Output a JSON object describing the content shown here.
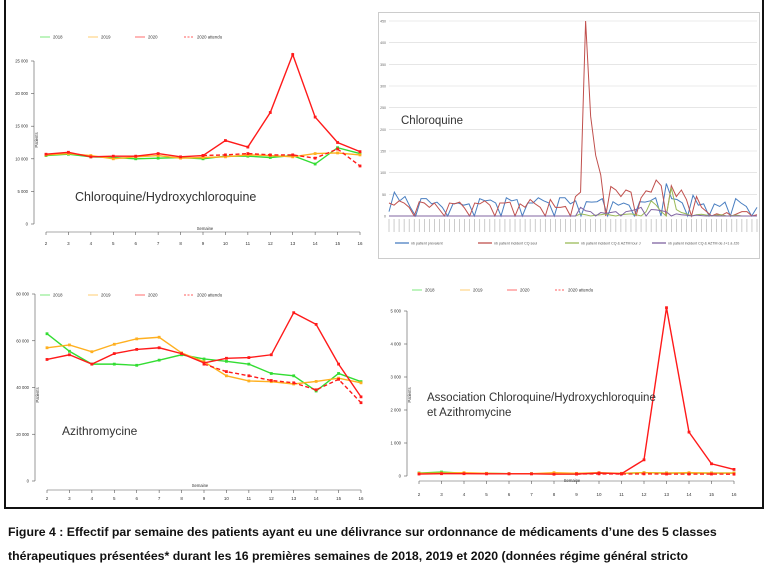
{
  "chart_data": [
    {
      "type": "line",
      "title": "Chloroquine/Hydroxychloroquine",
      "xlabel": "Semaine",
      "ylabel": "Patients",
      "ylim": [
        0,
        25000
      ],
      "yticks": [
        0,
        5000,
        10000,
        15000,
        20000,
        25000
      ],
      "ytick_labels": [
        "0",
        "5 000",
        "10 000",
        "15 000",
        "20 000",
        "25 000"
      ],
      "x": [
        2,
        3,
        4,
        5,
        6,
        7,
        8,
        9,
        10,
        11,
        12,
        13,
        14,
        15,
        16
      ],
      "legend_position": "top",
      "series": [
        {
          "name": "2018",
          "color": "#33dd33",
          "dashed": false,
          "values": [
            10500,
            10700,
            10300,
            10200,
            10000,
            10100,
            10200,
            10000,
            10400,
            10400,
            10200,
            10500,
            9200,
            11700,
            10800
          ]
        },
        {
          "name": "2019",
          "color": "#ffb020",
          "dashed": false,
          "values": [
            10600,
            10800,
            10500,
            10000,
            10300,
            10500,
            10100,
            10200,
            10300,
            10600,
            10500,
            10300,
            10800,
            10900,
            10600
          ]
        },
        {
          "name": "2020",
          "color": "#ff1a1a",
          "dashed": false,
          "values": [
            10700,
            11000,
            10300,
            10400,
            10400,
            10800,
            10300,
            10500,
            12800,
            11800,
            17100,
            26000,
            16400,
            12500,
            11100
          ]
        },
        {
          "name": "2020 attendu",
          "color": "#ff1a1a",
          "dashed": true,
          "values": [
            null,
            null,
            null,
            null,
            null,
            null,
            null,
            10500,
            10600,
            10800,
            10600,
            10600,
            10100,
            11500,
            8900
          ]
        }
      ]
    },
    {
      "type": "line",
      "title": "Chloroquine",
      "ylim": [
        0,
        450
      ],
      "yticks": [
        0,
        50,
        100,
        150,
        200,
        250,
        300,
        350,
        400,
        450
      ],
      "ytick_labels": [
        "0",
        "50",
        "100",
        "150",
        "200",
        "250",
        "300",
        "350",
        "400",
        "450"
      ],
      "grid": true,
      "legend_position": "bottom",
      "series": [
        {
          "name": "nb patient prévalent",
          "color": "#4a7fc1",
          "values": [
            10,
            55,
            35,
            45,
            20,
            0,
            40,
            40,
            28,
            32,
            20,
            0,
            28,
            30,
            25,
            28,
            0,
            40,
            35,
            37,
            30,
            0,
            42,
            35,
            38,
            0,
            30,
            30,
            42,
            35,
            30,
            0,
            42,
            42,
            28,
            35,
            0,
            33,
            32,
            33,
            40,
            0,
            33,
            25,
            30,
            25,
            0,
            33,
            32,
            35,
            42,
            0,
            75,
            40,
            38,
            30,
            0,
            48,
            25,
            28,
            0,
            28,
            22,
            32,
            0,
            40,
            30,
            22,
            0,
            20
          ]
        },
        {
          "name": "nb patient incident CQ seul",
          "color": "#c0504d",
          "values": [
            30,
            25,
            35,
            30,
            20,
            0,
            33,
            30,
            20,
            30,
            15,
            0,
            30,
            28,
            32,
            18,
            0,
            30,
            28,
            35,
            25,
            0,
            30,
            30,
            32,
            0,
            28,
            20,
            38,
            28,
            20,
            0,
            38,
            20,
            20,
            22,
            0,
            45,
            55,
            450,
            230,
            140,
            95,
            0,
            68,
            60,
            45,
            60,
            55,
            0,
            42,
            58,
            55,
            83,
            70,
            0,
            70,
            45,
            60,
            38,
            0,
            45,
            20,
            10,
            0,
            5,
            2,
            8,
            0,
            5,
            10,
            10,
            0,
            3
          ]
        },
        {
          "name": "nb patient incident CQ & AZTM tour J",
          "color": "#9bbb59",
          "values": [
            0,
            0,
            0,
            0,
            0,
            0,
            0,
            0,
            0,
            0,
            0,
            0,
            0,
            0,
            0,
            0,
            0,
            0,
            0,
            0,
            0,
            0,
            0,
            0,
            0,
            0,
            0,
            0,
            0,
            0,
            0,
            0,
            0,
            0,
            0,
            0,
            0,
            0,
            5,
            3,
            0,
            2,
            3,
            5,
            2,
            0,
            3,
            4,
            5,
            3,
            0,
            10,
            35,
            25,
            10,
            0,
            65,
            15,
            8,
            5,
            0,
            3,
            4,
            2,
            0,
            2,
            3,
            0,
            1,
            2,
            0,
            0,
            0,
            0
          ]
        },
        {
          "name": "nb patient incident CQ & AZTM de J+1 à J20",
          "color": "#8064a2",
          "values": [
            0,
            0,
            0,
            0,
            0,
            0,
            0,
            0,
            0,
            0,
            0,
            0,
            0,
            0,
            0,
            0,
            0,
            0,
            0,
            0,
            0,
            0,
            0,
            0,
            0,
            0,
            0,
            0,
            0,
            0,
            0,
            0,
            0,
            0,
            0,
            0,
            0,
            0,
            20,
            12,
            10,
            0,
            8,
            6,
            8,
            10,
            0,
            10,
            12,
            15,
            20,
            0,
            15,
            14,
            12,
            10,
            0,
            5,
            3,
            2,
            0,
            2,
            1,
            0,
            1,
            0,
            0,
            0,
            0,
            0,
            0,
            0,
            0,
            0
          ]
        }
      ]
    },
    {
      "type": "line",
      "title": "Azithromycine",
      "xlabel": "Semaine",
      "ylabel": "Patients",
      "ylim": [
        0,
        80000
      ],
      "yticks": [
        0,
        20000,
        40000,
        60000,
        80000
      ],
      "ytick_labels": [
        "0",
        "20 000",
        "40 000",
        "60 000",
        "80 000"
      ],
      "x": [
        2,
        3,
        4,
        5,
        6,
        7,
        8,
        9,
        10,
        11,
        12,
        13,
        14,
        15,
        16
      ],
      "legend_position": "top",
      "series": [
        {
          "name": "2018",
          "color": "#33dd33",
          "dashed": false,
          "values": [
            63000,
            55500,
            50000,
            50000,
            49500,
            51700,
            54000,
            52200,
            51200,
            50000,
            46000,
            45000,
            38500,
            46000,
            42500
          ]
        },
        {
          "name": "2019",
          "color": "#ffb020",
          "dashed": false,
          "values": [
            57000,
            58200,
            55300,
            58500,
            60800,
            61500,
            54800,
            51000,
            45000,
            42800,
            42500,
            41500,
            42600,
            44000,
            42000
          ]
        },
        {
          "name": "2020",
          "color": "#ff1a1a",
          "dashed": false,
          "values": [
            52000,
            54000,
            50000,
            54500,
            56300,
            57000,
            54500,
            50500,
            52500,
            52800,
            54000,
            72000,
            67000,
            50000,
            36000
          ]
        },
        {
          "name": "2020 attendu",
          "color": "#ff1a1a",
          "dashed": true,
          "values": [
            null,
            null,
            null,
            null,
            null,
            null,
            null,
            50000,
            46800,
            45000,
            43000,
            42000,
            39000,
            43500,
            33500
          ]
        }
      ]
    },
    {
      "type": "line",
      "title": "Association Chloroquine/Hydroxychloroquine",
      "title_line2": "et Azithromycine",
      "xlabel": "Semaine",
      "ylabel": "Patients",
      "ylim": [
        0,
        5000
      ],
      "yticks": [
        0,
        1000,
        2000,
        3000,
        4000,
        5000
      ],
      "ytick_labels": [
        "0",
        "1 000",
        "2 000",
        "3 000",
        "4 000",
        "5 000"
      ],
      "x": [
        2,
        3,
        4,
        5,
        6,
        7,
        8,
        9,
        10,
        11,
        12,
        13,
        14,
        15,
        16
      ],
      "legend_position": "top",
      "series": [
        {
          "name": "2018",
          "color": "#33dd33",
          "dashed": false,
          "values": [
            90,
            120,
            85,
            80,
            70,
            70,
            70,
            60,
            90,
            80,
            100,
            90,
            90,
            90,
            90
          ]
        },
        {
          "name": "2019",
          "color": "#ffb020",
          "dashed": false,
          "values": [
            80,
            90,
            100,
            80,
            70,
            70,
            100,
            80,
            100,
            80,
            100,
            90,
            100,
            90,
            90
          ]
        },
        {
          "name": "2020",
          "color": "#ff1a1a",
          "dashed": false,
          "values": [
            60,
            70,
            70,
            65,
            65,
            65,
            55,
            60,
            90,
            70,
            490,
            5100,
            1330,
            370,
            200
          ]
        },
        {
          "name": "2020 attendu",
          "color": "#ff1a1a",
          "dashed": true,
          "values": [
            null,
            null,
            null,
            null,
            null,
            null,
            null,
            60,
            65,
            60,
            65,
            60,
            60,
            60,
            55
          ]
        }
      ]
    }
  ],
  "caption": {
    "line1": "Figure 4 : Effectif par semaine des patients ayant eu une délivrance sur ordonnance de médicaments d’une des 5 classes",
    "line2": "thérapeutiques présentées* durant les 16 premières semaines de 2018, 2019 et 2020 (données régime général stricto"
  }
}
